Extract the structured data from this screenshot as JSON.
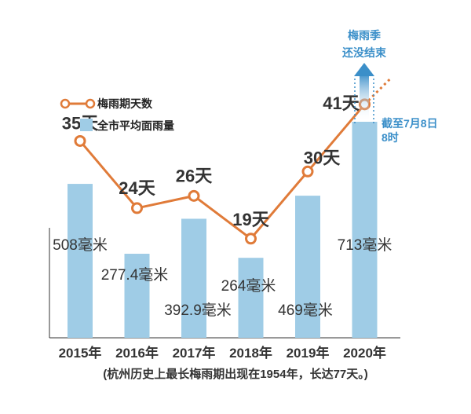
{
  "chart_data": {
    "type": "bar+line",
    "categories": [
      "2015年",
      "2016年",
      "2017年",
      "2018年",
      "2019年",
      "2020年"
    ],
    "series": [
      {
        "name": "全市平均面雨量",
        "type": "bar",
        "values": [
          508,
          277.4,
          392.9,
          264,
          469,
          713
        ],
        "labels": [
          "508毫米",
          "277.4毫米",
          "392.9毫米",
          "264毫米",
          "469毫米",
          "713毫米"
        ],
        "color": "#9fcce6"
      },
      {
        "name": "梅雨期天数",
        "type": "line",
        "values": [
          35,
          24,
          26,
          19,
          30,
          41
        ],
        "labels": [
          "35天",
          "24天",
          "26天",
          "19天",
          "30天",
          "41天"
        ],
        "color": "#e07b39"
      }
    ],
    "annotations": {
      "season_status": [
        "梅雨季",
        "还没结束"
      ],
      "cutoff": [
        "截至7月8日",
        "8时"
      ]
    },
    "footnote": "(杭州历史上最长梅雨期出现在1954年，长达77天。)"
  }
}
